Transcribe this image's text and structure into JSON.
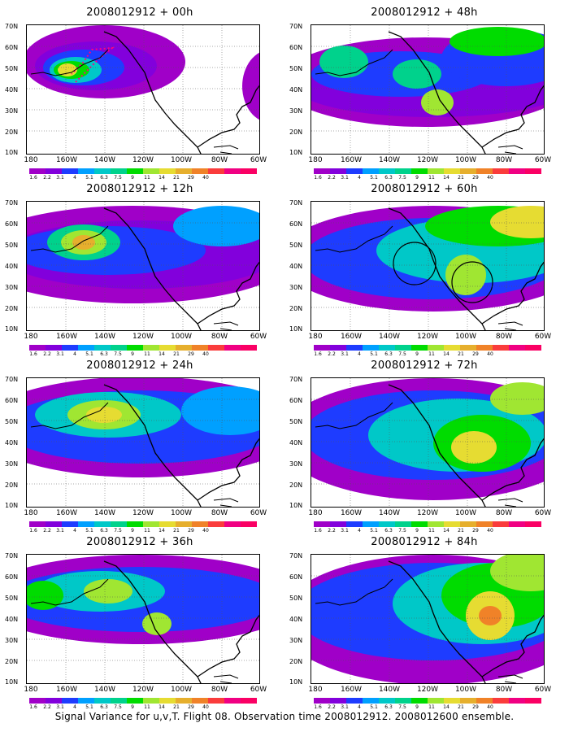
{
  "panels": [
    {
      "title": "2008012912 + 00h"
    },
    {
      "title": "2008012912 + 48h"
    },
    {
      "title": "2008012912 + 12h"
    },
    {
      "title": "2008012912 + 60h"
    },
    {
      "title": "2008012912 + 24h"
    },
    {
      "title": "2008012912 + 72h"
    },
    {
      "title": "2008012912 + 36h"
    },
    {
      "title": "2008012912 + 84h"
    }
  ],
  "lat_labels": [
    "70N",
    "60N",
    "50N",
    "40N",
    "30N",
    "20N",
    "10N"
  ],
  "lon_labels": [
    "180",
    "160W",
    "140W",
    "120W",
    "100W",
    "80W",
    "60W"
  ],
  "colorbar": {
    "labels": [
      "1.6",
      "2.2",
      "3.1",
      "4",
      "5.1",
      "6.3",
      "7.5",
      "9",
      "11",
      "14",
      "21",
      "29",
      "40"
    ],
    "colors": [
      "#a000c8",
      "#8200dc",
      "#1e3cff",
      "#00a0ff",
      "#00c8c8",
      "#00d28c",
      "#00dc00",
      "#a0e632",
      "#e6dc32",
      "#e6af2d",
      "#f08228",
      "#fa3c3c",
      "#f00082"
    ]
  },
  "caption": "Signal Variance for u,v,T. Flight 08. Observation time 2008012912. 2008012600 ensemble."
}
